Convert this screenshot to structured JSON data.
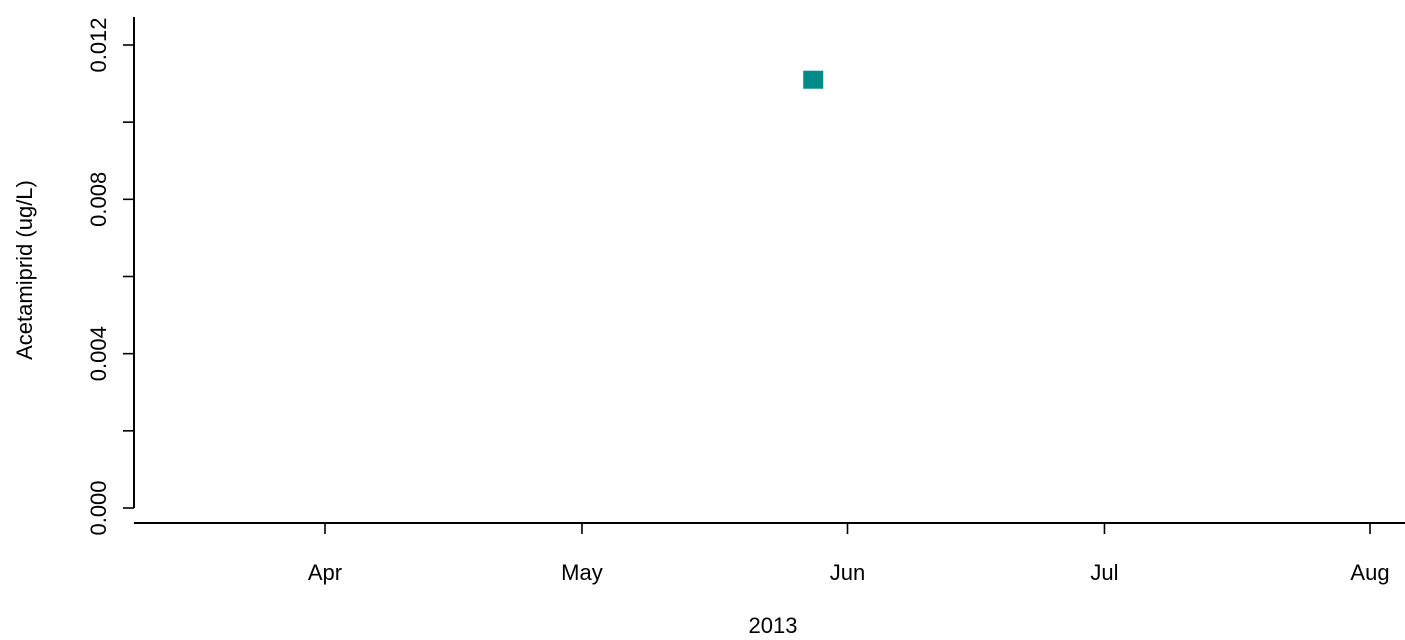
{
  "chart_data": {
    "type": "scatter",
    "title": "",
    "xlabel": "2013",
    "ylabel": "Acetamiprid (ug/L)",
    "x_axis_type": "date",
    "xlim": [
      "2013-03-09",
      "2013-08-01"
    ],
    "ylim": [
      0,
      0.0124
    ],
    "x_ticks": [
      {
        "date": "2013-04-01",
        "label": "Apr"
      },
      {
        "date": "2013-05-01",
        "label": "May"
      },
      {
        "date": "2013-06-01",
        "label": "Jun"
      },
      {
        "date": "2013-07-01",
        "label": "Jul"
      },
      {
        "date": "2013-08-01",
        "label": "Aug"
      }
    ],
    "y_ticks": [
      0.0,
      0.002,
      0.004,
      0.006,
      0.008,
      0.01,
      0.012
    ],
    "y_tick_labels": [
      "0.000",
      "",
      "0.004",
      "",
      "0.008",
      "",
      "0.012"
    ],
    "grid": false,
    "marker": "filled-square",
    "marker_color": "#008B8B",
    "points": [
      {
        "x": "2013-05-28",
        "y": 0.0111
      }
    ]
  }
}
